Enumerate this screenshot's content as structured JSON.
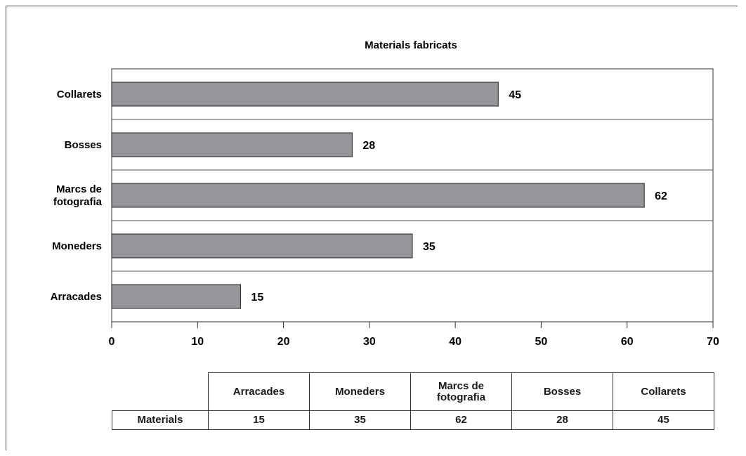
{
  "chart_data": {
    "type": "bar",
    "orientation": "horizontal",
    "title": "Materials fabricats",
    "categories": [
      "Collarets",
      "Bosses",
      "Marcs de fotografia",
      "Moneders",
      "Arracades"
    ],
    "category_lines": [
      [
        "Collarets"
      ],
      [
        "Bosses"
      ],
      [
        "Marcs de",
        "fotografia"
      ],
      [
        "Moneders"
      ],
      [
        "Arracades"
      ]
    ],
    "values": [
      45,
      28,
      62,
      35,
      15
    ],
    "xlim": [
      0,
      70
    ],
    "xticks": [
      0,
      10,
      20,
      30,
      40,
      50,
      60,
      70
    ],
    "xtick_labels": [
      "0",
      "10",
      "20",
      "30",
      "40",
      "50",
      "60",
      "70"
    ],
    "grid": "horizontal separators between categories",
    "bar_color": "#96969a",
    "table": {
      "row_label": "Materials",
      "columns": [
        "Arracades",
        "Moneders",
        "Marcs de fotografia",
        "Bosses",
        "Collarets"
      ],
      "column_lines": [
        [
          "Arracades"
        ],
        [
          "Moneders"
        ],
        [
          "Marcs de",
          "fotografia"
        ],
        [
          "Bosses"
        ],
        [
          "Collarets"
        ]
      ],
      "values": [
        "15",
        "35",
        "62",
        "28",
        "45"
      ]
    }
  }
}
